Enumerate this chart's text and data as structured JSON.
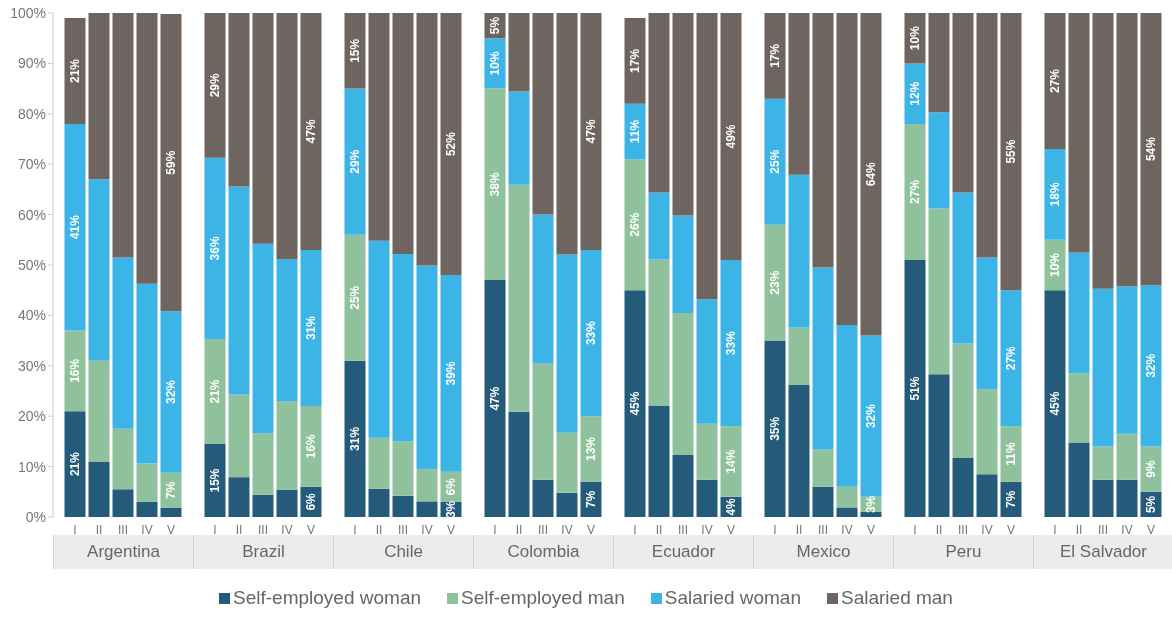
{
  "chart_data": [
    {
      "type": "bar",
      "stacked": true,
      "xlabel": "Argentina",
      "categories": [
        "I",
        "II",
        "III",
        "IV",
        "V"
      ],
      "ylim": [
        0,
        100
      ],
      "yticks": [
        {
          "value": 0,
          "label": "0%"
        },
        {
          "value": 10,
          "label": "10%"
        },
        {
          "value": 20,
          "label": "20%"
        },
        {
          "value": 30,
          "label": "30%"
        },
        {
          "value": 40,
          "label": "40%"
        },
        {
          "value": 50,
          "label": "50%"
        },
        {
          "value": 60,
          "label": "60%"
        },
        {
          "value": 70,
          "label": "70%"
        },
        {
          "value": 80,
          "label": "80%"
        },
        {
          "value": 90,
          "label": "90%"
        },
        {
          "value": 100,
          "label": "100%"
        }
      ],
      "legend": "bottom",
      "series": [
        {
          "name": "Self-employed woman",
          "color": "#245a7a",
          "values": [
            21,
            11,
            5.5,
            3,
            1.8
          ],
          "value_labels": [
            "21%",
            null,
            null,
            null,
            null
          ]
        },
        {
          "name": "Self-employed man",
          "color": "#8fc19d",
          "values": [
            16,
            20,
            12,
            7.6,
            7
          ],
          "value_labels": [
            "16%",
            null,
            null,
            null,
            "7%"
          ]
        },
        {
          "name": "Salaried woman",
          "color": "#3db4e6",
          "values": [
            41,
            36,
            34,
            35.7,
            32
          ],
          "value_labels": [
            "41%",
            null,
            null,
            null,
            "32%"
          ]
        },
        {
          "name": "Salaried man",
          "color": "#6e6560",
          "values": [
            21,
            33,
            48.5,
            53.7,
            59
          ],
          "value_labels": [
            "21%",
            null,
            null,
            null,
            "59%"
          ]
        }
      ]
    },
    {
      "type": "bar",
      "stacked": true,
      "xlabel": "Brazil",
      "categories": [
        "I",
        "II",
        "III",
        "IV",
        "V"
      ],
      "ylim": [
        0,
        100
      ],
      "tick_labels": "x",
      "series": [
        {
          "color": "#245a7a",
          "values": [
            14.5,
            7.9,
            4.4,
            5.4,
            6
          ],
          "value_labels": [
            "15%",
            null,
            null,
            null,
            "6%"
          ]
        },
        {
          "color": "#8fc19d",
          "values": [
            20.8,
            16.4,
            12.2,
            17.5,
            16
          ],
          "value_labels": [
            "21%",
            null,
            null,
            null,
            "16%"
          ]
        },
        {
          "color": "#3db4e6",
          "values": [
            36,
            41.3,
            37.6,
            28.3,
            31
          ],
          "value_labels": [
            "36%",
            null,
            null,
            null,
            "31%"
          ]
        },
        {
          "color": "#6e6560",
          "values": [
            28.7,
            34.4,
            45.8,
            48.8,
            47
          ],
          "value_labels": [
            "29%",
            null,
            null,
            null,
            "47%"
          ]
        }
      ]
    },
    {
      "type": "bar",
      "stacked": true,
      "xlabel": "Chile",
      "categories": [
        "I",
        "II",
        "III",
        "IV",
        "V"
      ],
      "ylim": [
        0,
        100
      ],
      "tick_labels": "x",
      "series": [
        {
          "color": "#245a7a",
          "values": [
            31,
            5.6,
            4.2,
            3.1,
            3
          ],
          "value_labels": [
            "31%",
            null,
            null,
            null,
            "3%"
          ]
        },
        {
          "color": "#8fc19d",
          "values": [
            25,
            10.1,
            10.8,
            6.4,
            6
          ],
          "value_labels": [
            "25%",
            null,
            null,
            null,
            "6%"
          ]
        },
        {
          "color": "#3db4e6",
          "values": [
            29,
            39.1,
            37.2,
            40.4,
            39
          ],
          "value_labels": [
            "29%",
            null,
            null,
            null,
            "39%"
          ]
        },
        {
          "color": "#6e6560",
          "values": [
            15,
            45.2,
            47.8,
            50.1,
            52
          ],
          "value_labels": [
            "15%",
            null,
            null,
            null,
            "52%"
          ]
        }
      ]
    },
    {
      "type": "bar",
      "stacked": true,
      "xlabel": "Colombia",
      "categories": [
        "I",
        "II",
        "III",
        "IV",
        "V"
      ],
      "ylim": [
        0,
        100
      ],
      "tick_labels": "x",
      "series": [
        {
          "color": "#245a7a",
          "values": [
            47,
            20.9,
            7.4,
            4.8,
            7
          ],
          "value_labels": [
            "47%",
            null,
            null,
            null,
            "7%"
          ]
        },
        {
          "color": "#8fc19d",
          "values": [
            38,
            45,
            23,
            11.9,
            13
          ],
          "value_labels": [
            "38%",
            null,
            null,
            null,
            "13%"
          ]
        },
        {
          "color": "#3db4e6",
          "values": [
            10,
            18.5,
            29.6,
            35.4,
            33
          ],
          "value_labels": [
            "10%",
            null,
            null,
            null,
            "33%"
          ]
        },
        {
          "color": "#6e6560",
          "values": [
            5,
            15.6,
            40,
            47.9,
            47
          ],
          "value_labels": [
            "5%",
            null,
            null,
            null,
            "47%"
          ]
        }
      ]
    },
    {
      "type": "bar",
      "stacked": true,
      "xlabel": "Ecuador",
      "categories": [
        "I",
        "II",
        "III",
        "IV",
        "V"
      ],
      "ylim": [
        0,
        100
      ],
      "tick_labels": "x",
      "series": [
        {
          "color": "#245a7a",
          "values": [
            45,
            22.1,
            12.3,
            7.4,
            4
          ],
          "value_labels": [
            "45%",
            null,
            null,
            null,
            "4%"
          ]
        },
        {
          "color": "#8fc19d",
          "values": [
            26,
            29,
            28.2,
            11.1,
            14
          ],
          "value_labels": [
            "26%",
            null,
            null,
            null,
            "14%"
          ]
        },
        {
          "color": "#3db4e6",
          "values": [
            11,
            13.3,
            19.3,
            24.7,
            33
          ],
          "value_labels": [
            "11%",
            null,
            null,
            null,
            "33%"
          ]
        },
        {
          "color": "#6e6560",
          "values": [
            17,
            35.6,
            40.2,
            56.8,
            49
          ],
          "value_labels": [
            "17%",
            null,
            null,
            null,
            "49%"
          ]
        }
      ]
    },
    {
      "type": "bar",
      "stacked": true,
      "xlabel": "Mexico",
      "categories": [
        "I",
        "II",
        "III",
        "IV",
        "V"
      ],
      "ylim": [
        0,
        100
      ],
      "tick_labels": "x",
      "series": [
        {
          "color": "#245a7a",
          "values": [
            35,
            26.2,
            6,
            1.9,
            1
          ],
          "value_labels": [
            "35%",
            null,
            null,
            null,
            null
          ]
        },
        {
          "color": "#8fc19d",
          "values": [
            23,
            11.4,
            7.4,
            4.1,
            3
          ],
          "value_labels": [
            "23%",
            null,
            null,
            null,
            "3%"
          ]
        },
        {
          "color": "#3db4e6",
          "values": [
            25,
            30.3,
            36.1,
            32.1,
            32
          ],
          "value_labels": [
            "25%",
            null,
            null,
            null,
            "32%"
          ]
        },
        {
          "color": "#6e6560",
          "values": [
            17,
            32.1,
            50.5,
            61.9,
            64
          ],
          "value_labels": [
            "17%",
            null,
            null,
            null,
            "64%"
          ]
        }
      ]
    },
    {
      "type": "bar",
      "stacked": true,
      "xlabel": "Peru",
      "categories": [
        "I",
        "II",
        "III",
        "IV",
        "V"
      ],
      "ylim": [
        0,
        100
      ],
      "tick_labels": "x",
      "series": [
        {
          "color": "#245a7a",
          "values": [
            51,
            28.3,
            11.7,
            8.5,
            7
          ],
          "value_labels": [
            "51%",
            null,
            null,
            null,
            "7%"
          ]
        },
        {
          "color": "#8fc19d",
          "values": [
            27,
            32.9,
            22.7,
            16.8,
            11
          ],
          "value_labels": [
            "27%",
            null,
            null,
            null,
            "11%"
          ]
        },
        {
          "color": "#3db4e6",
          "values": [
            12,
            19.1,
            30,
            26.2,
            27
          ],
          "value_labels": [
            "12%",
            null,
            null,
            null,
            "27%"
          ]
        },
        {
          "color": "#6e6560",
          "values": [
            10,
            19.7,
            35.6,
            48.5,
            55
          ],
          "value_labels": [
            "10%",
            null,
            null,
            null,
            "55%"
          ]
        }
      ]
    },
    {
      "type": "bar",
      "stacked": true,
      "xlabel": "El Salvador",
      "categories": [
        "I",
        "II",
        "III",
        "IV",
        "V"
      ],
      "ylim": [
        0,
        100
      ],
      "tick_labels": "x",
      "series": [
        {
          "color": "#245a7a",
          "values": [
            45,
            14.8,
            7.4,
            7.4,
            5
          ],
          "value_labels": [
            "45%",
            null,
            null,
            null,
            "5%"
          ]
        },
        {
          "color": "#8fc19d",
          "values": [
            10,
            13.7,
            6.6,
            9.1,
            9
          ],
          "value_labels": [
            "10%",
            null,
            null,
            null,
            "9%"
          ]
        },
        {
          "color": "#3db4e6",
          "values": [
            18,
            24,
            31.3,
            29.3,
            32
          ],
          "value_labels": [
            "18%",
            null,
            null,
            null,
            "32%"
          ]
        },
        {
          "color": "#6e6560",
          "values": [
            27,
            47.5,
            54.7,
            54.2,
            54
          ],
          "value_labels": [
            "27%",
            null,
            null,
            null,
            "54%"
          ]
        }
      ]
    }
  ]
}
